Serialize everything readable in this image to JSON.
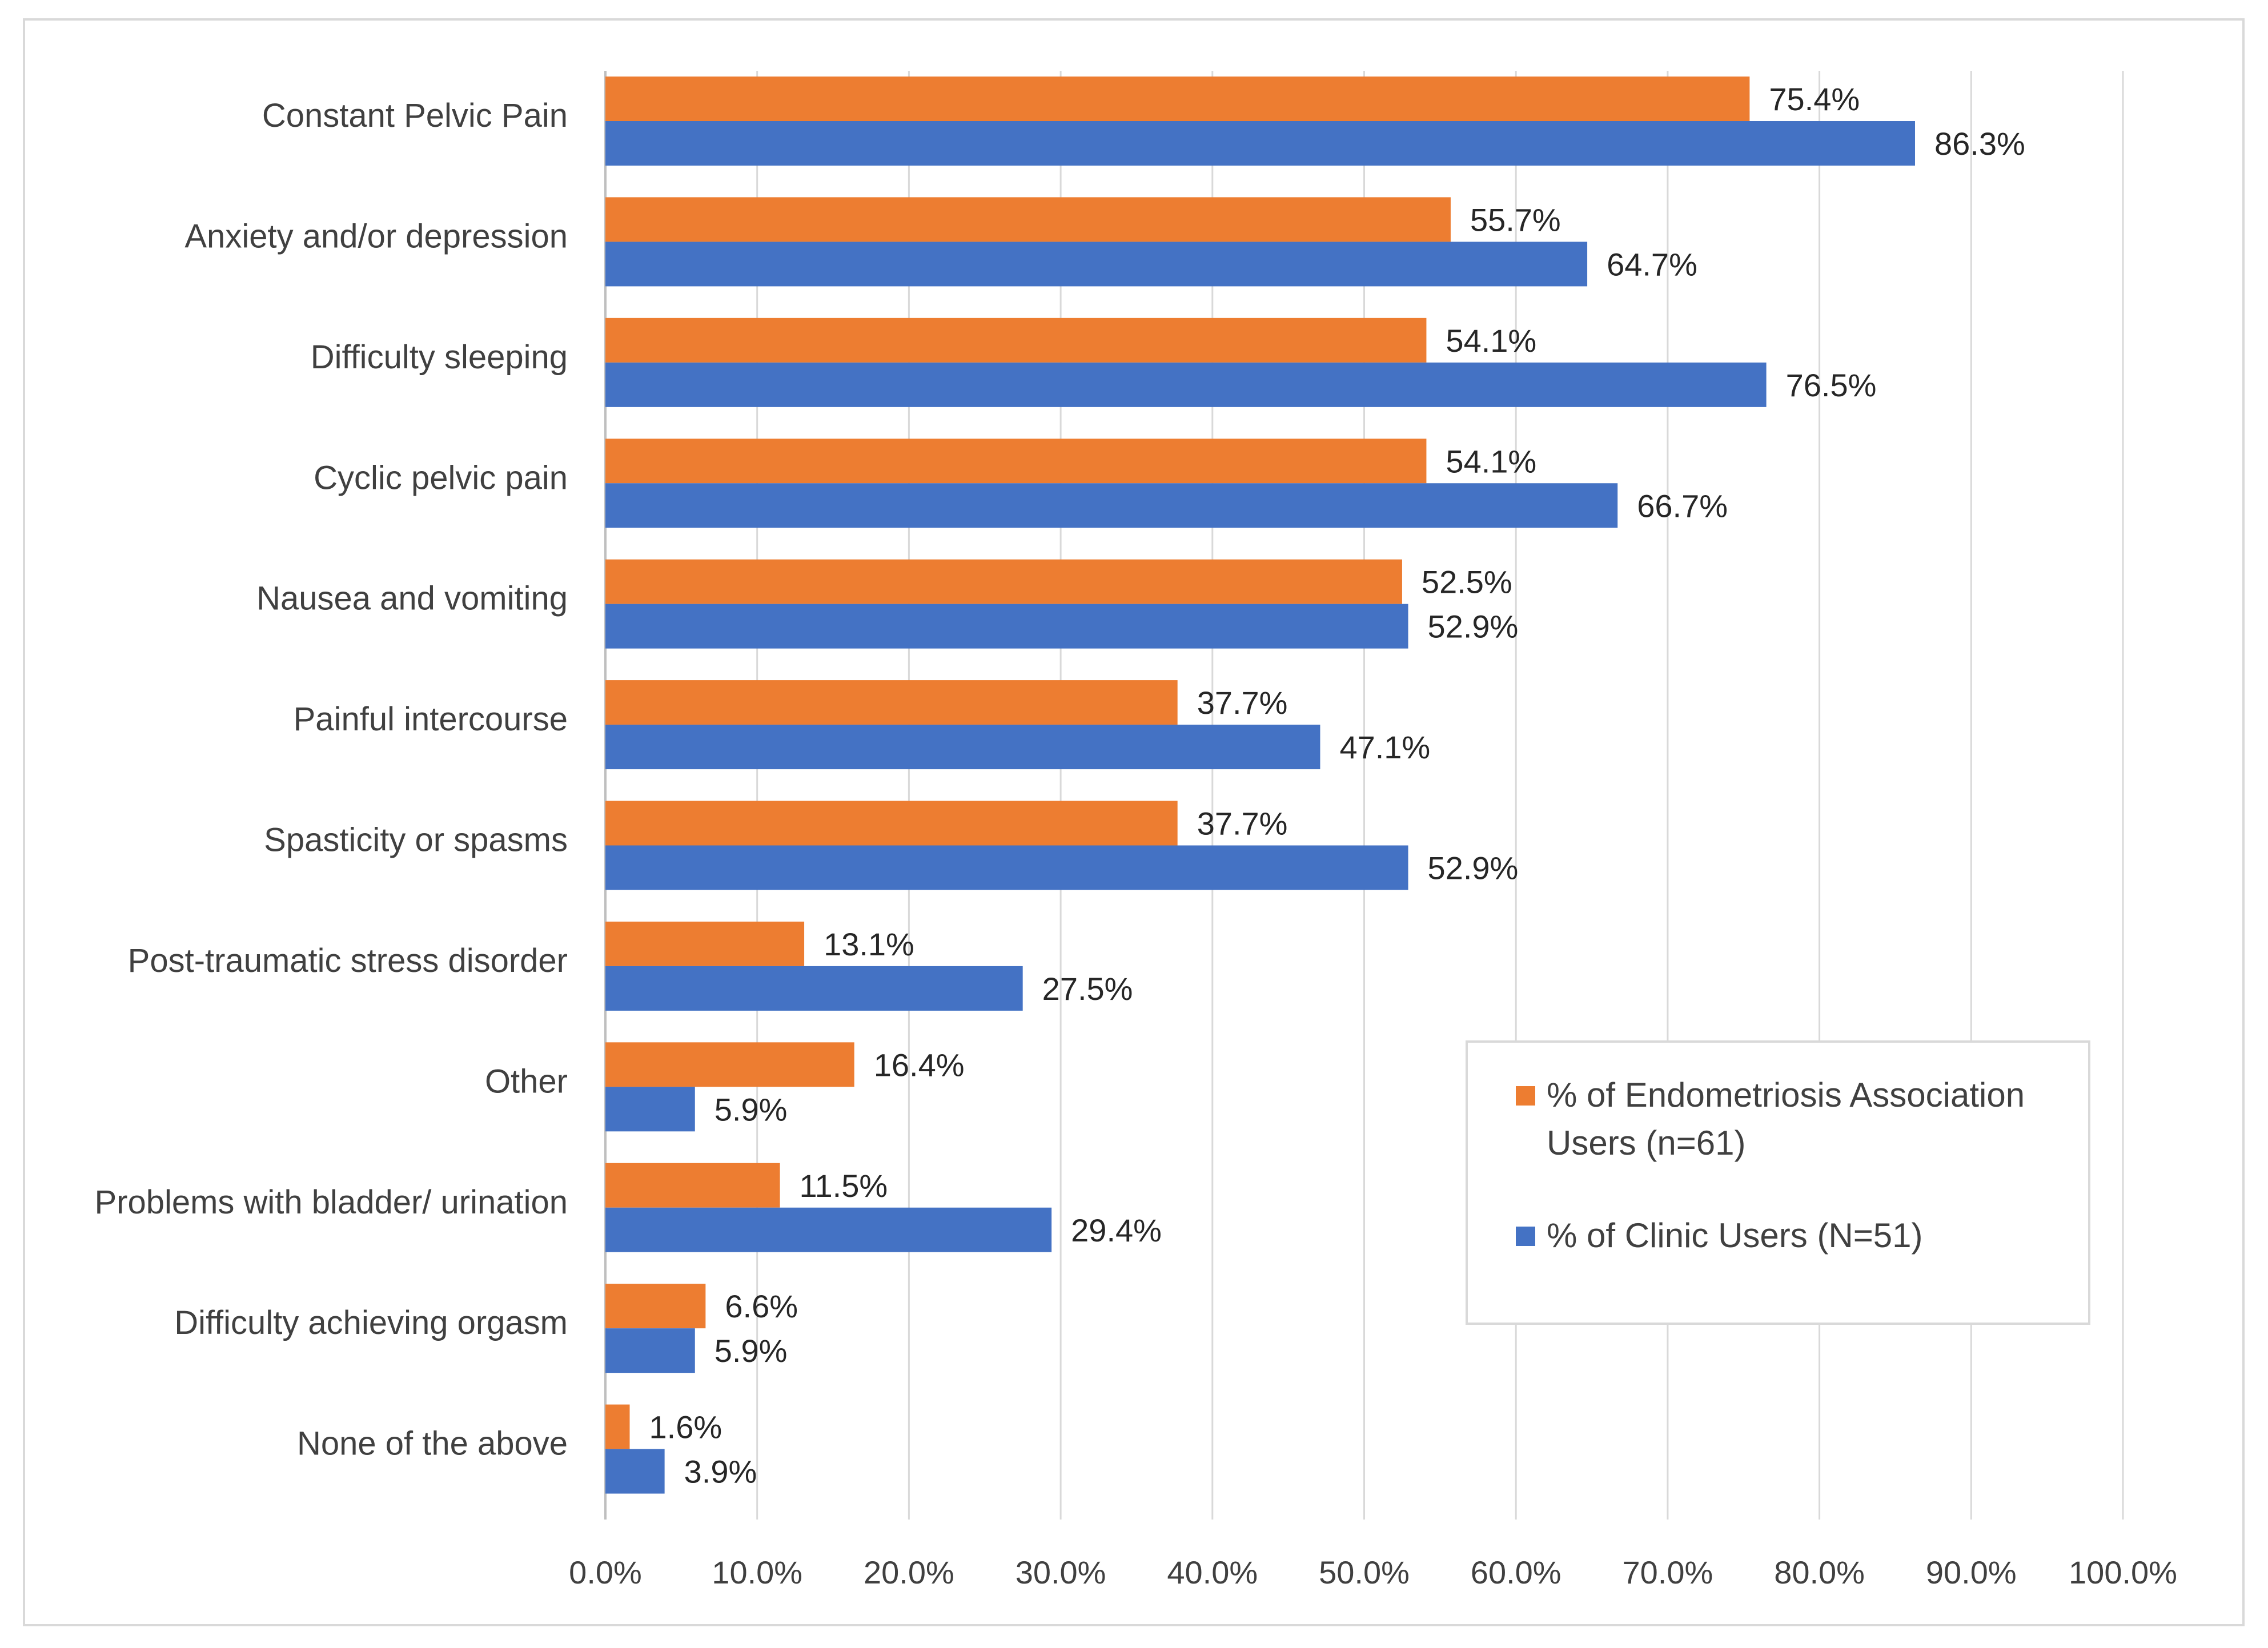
{
  "chart_data": {
    "type": "bar",
    "orientation": "horizontal",
    "title": "",
    "xlabel": "",
    "ylabel": "",
    "xlim": [
      0,
      100
    ],
    "grid": true,
    "legend_position": "right",
    "categories": [
      "Constant Pelvic Pain",
      "Anxiety and/or depression",
      "Difficulty sleeping",
      "Cyclic pelvic pain",
      "Nausea and vomiting",
      "Painful intercourse",
      "Spasticity or spasms",
      "Post-traumatic stress disorder",
      "Other",
      "Problems with bladder/ urination",
      "Difficulty achieving orgasm",
      "None of the above"
    ],
    "x_ticks": [
      "0.0%",
      "10.0%",
      "20.0%",
      "30.0%",
      "40.0%",
      "50.0%",
      "60.0%",
      "70.0%",
      "80.0%",
      "90.0%",
      "100.0%"
    ],
    "series": [
      {
        "name": "% of Endometriosis Association Users (n=61)",
        "legend_lines": [
          "% of Endometriosis Association",
          "Users (n=61)"
        ],
        "color": "#ED7D31",
        "values": [
          75.4,
          55.7,
          54.1,
          54.1,
          52.5,
          37.7,
          37.7,
          13.1,
          16.4,
          11.5,
          6.6,
          1.6
        ],
        "labels": [
          "75.4%",
          "55.7%",
          "54.1%",
          "54.1%",
          "52.5%",
          "37.7%",
          "37.7%",
          "13.1%",
          "16.4%",
          "11.5%",
          "6.6%",
          "1.6%"
        ]
      },
      {
        "name": "% of Clinic Users (N=51)",
        "legend_lines": [
          "% of Clinic Users (N=51)"
        ],
        "color": "#4472C4",
        "values": [
          86.3,
          64.7,
          76.5,
          66.7,
          52.9,
          47.1,
          52.9,
          27.5,
          5.9,
          29.4,
          5.9,
          3.9
        ],
        "labels": [
          "86.3%",
          "64.7%",
          "76.5%",
          "66.7%",
          "52.9%",
          "47.1%",
          "52.9%",
          "27.5%",
          "5.9%",
          "29.4%",
          "5.9%",
          "3.9%"
        ]
      }
    ],
    "colors": {
      "grid": "#d9d9d9",
      "axis": "#bfbfbf",
      "text": "#404040"
    }
  }
}
